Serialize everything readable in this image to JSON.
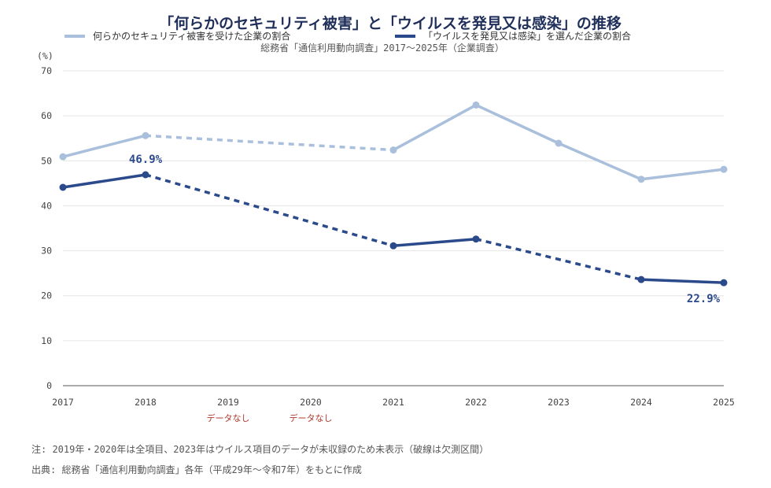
{
  "chart_data": {
    "type": "line",
    "title": "「何らかのセキュリティ被害」と「ウイルスを発見又は感染」の推移",
    "subtitle": "総務省「通信利用動向調査」2017〜2025年（企業調査）",
    "ylabel": "(%)",
    "ylim": [
      0,
      70
    ],
    "yticks": [
      0,
      10,
      20,
      30,
      40,
      50,
      60,
      70
    ],
    "x": [
      "2017",
      "2018",
      "2019",
      "2020",
      "2021",
      "2022",
      "2023",
      "2024",
      "2025"
    ],
    "no_data_label": "データなし",
    "no_data_years": [
      "2019",
      "2020"
    ],
    "grid": true,
    "legend_position": "top",
    "series": [
      {
        "name": "何らかのセキュリティ被害を受けた企業の割合",
        "color": "#a9bfdb",
        "values": [
          50.9,
          55.6,
          null,
          null,
          52.4,
          62.4,
          53.9,
          45.9,
          48.1
        ]
      },
      {
        "name": "「ウイルスを発見又は感染」を選んだ企業の割合",
        "color": "#2b4a8b",
        "values": [
          44.1,
          46.9,
          null,
          null,
          31.1,
          32.6,
          null,
          23.6,
          22.9
        ],
        "labels": [
          {
            "x": "2018",
            "text": "46.9%"
          },
          {
            "x": "2025",
            "text": "22.9%"
          }
        ]
      }
    ]
  },
  "notes": {
    "note": "注: 2019年・2020年は全項目、2023年はウイルス項目のデータが未収録のため未表示（破線は欠測区間）",
    "source": "出典: 総務省「通信利用動向調査」各年（平成29年〜令和7年）をもとに作成"
  }
}
